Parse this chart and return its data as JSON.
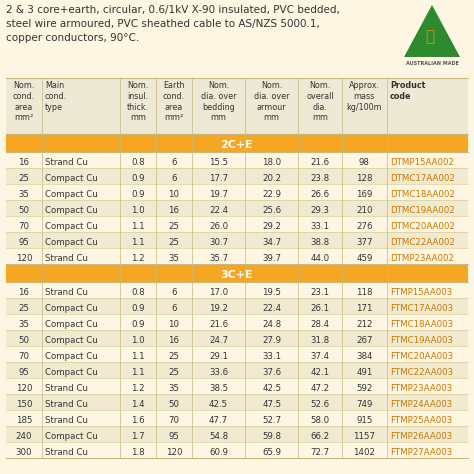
{
  "title_lines": [
    "2 & 3 core+earth, circular, 0.6/1kV X-90 insulated, PVC bedded,",
    "steel wire armoured, PVC sheathed cable to AS/NZS 5000.1,",
    "copper conductors, 90°C."
  ],
  "col_headers": [
    "Nom.\ncond.\narea\nmm²",
    "Main\ncond.\ntype",
    "Nom.\ninsul.\nthick.\nmm",
    "Earth\ncond.\narea\nmm²",
    "Nom.\ndia. over\nbedding\nmm",
    "Nom.\ndia. over\narmour\nmm",
    "Nom.\noverall\ndia.\nmm",
    "Approx.\nmass\nkg/100m",
    "Product\ncode"
  ],
  "section_2CE": {
    "label": "2C+E",
    "rows": [
      [
        "16",
        "Strand Cu",
        "0.8",
        "6",
        "15.5",
        "18.0",
        "21.6",
        "98",
        "DTMP15AA002"
      ],
      [
        "25",
        "Compact Cu",
        "0.9",
        "6",
        "17.7",
        "20.2",
        "23.8",
        "128",
        "DTMC17AA002"
      ],
      [
        "35",
        "Compact Cu",
        "0.9",
        "10",
        "19.7",
        "22.9",
        "26.6",
        "169",
        "DTMC18AA002"
      ],
      [
        "50",
        "Compact Cu",
        "1.0",
        "16",
        "22.4",
        "25.6",
        "29.3",
        "210",
        "DTMC19AA002"
      ],
      [
        "70",
        "Compact Cu",
        "1.1",
        "25",
        "26.0",
        "29.2",
        "33.1",
        "276",
        "DTMC20AA002"
      ],
      [
        "95",
        "Compact Cu",
        "1.1",
        "25",
        "30.7",
        "34.7",
        "38.8",
        "377",
        "DTMC22AA002"
      ],
      [
        "120",
        "Strand Cu",
        "1.2",
        "35",
        "35.7",
        "39.7",
        "44.0",
        "459",
        "DTMP23AA002"
      ]
    ]
  },
  "section_3CE": {
    "label": "3C+E",
    "rows": [
      [
        "16",
        "Strand Cu",
        "0.8",
        "6",
        "17.0",
        "19.5",
        "23.1",
        "118",
        "FTMP15AA003"
      ],
      [
        "25",
        "Compact Cu",
        "0.9",
        "6",
        "19.2",
        "22.4",
        "26.1",
        "171",
        "FTMC17AA003"
      ],
      [
        "35",
        "Compact Cu",
        "0.9",
        "10",
        "21.6",
        "24.8",
        "28.4",
        "212",
        "FTMC18AA003"
      ],
      [
        "50",
        "Compact Cu",
        "1.0",
        "16",
        "24.7",
        "27.9",
        "31.8",
        "267",
        "FTMC19AA003"
      ],
      [
        "70",
        "Compact Cu",
        "1.1",
        "25",
        "29.1",
        "33.1",
        "37.4",
        "384",
        "FTMC20AA003"
      ],
      [
        "95",
        "Compact Cu",
        "1.1",
        "25",
        "33.6",
        "37.6",
        "42.1",
        "491",
        "FTMC22AA003"
      ],
      [
        "120",
        "Strand Cu",
        "1.2",
        "35",
        "38.5",
        "42.5",
        "47.2",
        "592",
        "FTMP23AA003"
      ],
      [
        "150",
        "Strand Cu",
        "1.4",
        "50",
        "42.5",
        "47.5",
        "52.6",
        "749",
        "FTMP24AA003"
      ],
      [
        "185",
        "Strand Cu",
        "1.6",
        "70",
        "47.7",
        "52.7",
        "58.0",
        "915",
        "FTMP25AA003"
      ],
      [
        "240",
        "Compact Cu",
        "1.7",
        "95",
        "54.8",
        "59.8",
        "66.2",
        "1157",
        "FTMP26AA003"
      ],
      [
        "300",
        "Strand Cu",
        "1.8",
        "120",
        "60.9",
        "65.9",
        "72.7",
        "1402",
        "FTMP27AA003"
      ]
    ]
  },
  "bg_color": "#fdf6e3",
  "header_bg": "#ede9d5",
  "section_bg": "#f5a623",
  "row_odd": "#fdf6e3",
  "row_even": "#f0ead0",
  "text_color": "#333333",
  "product_color": "#cc7700",
  "border_color": "#c8b882",
  "col_widths": [
    0.62,
    1.35,
    0.62,
    0.62,
    0.92,
    0.92,
    0.75,
    0.78,
    1.4
  ],
  "title_fontsize": 7.5,
  "header_fontsize": 5.8,
  "cell_fontsize": 6.2,
  "section_fontsize": 8.0
}
